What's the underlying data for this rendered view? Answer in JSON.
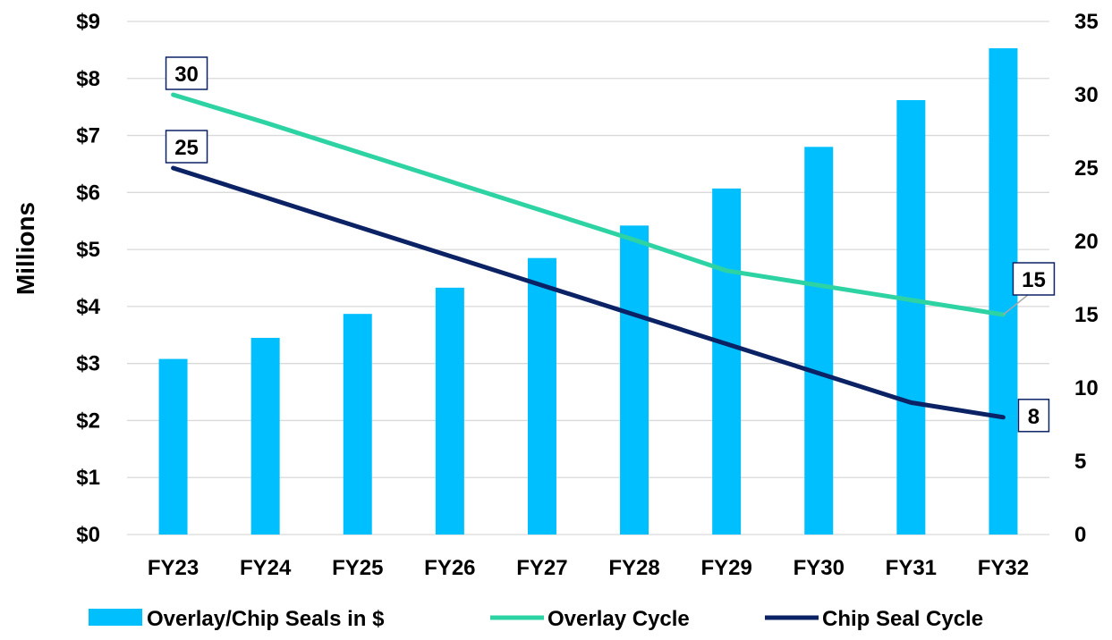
{
  "chart_data": {
    "type": "bar",
    "categories": [
      "FY23",
      "FY24",
      "FY25",
      "FY26",
      "FY27",
      "FY28",
      "FY29",
      "FY30",
      "FY31",
      "FY32"
    ],
    "bars": {
      "name": "Overlay/Chip Seals in $",
      "values": [
        3.08,
        3.45,
        3.87,
        4.33,
        4.85,
        5.42,
        6.07,
        6.8,
        7.62,
        8.53
      ],
      "color": "#00BFFF"
    },
    "lines": [
      {
        "name": "Overlay Cycle",
        "values": [
          30,
          28.1,
          26.1,
          24.1,
          22.1,
          20.1,
          18,
          17,
          16,
          15
        ],
        "color": "#2ED3A4",
        "labels": [
          {
            "index": 0,
            "text": "30"
          },
          {
            "index": 9,
            "text": "15"
          }
        ]
      },
      {
        "name": "Chip Seal Cycle",
        "values": [
          25,
          23,
          21,
          19,
          17,
          15,
          13,
          11,
          9,
          8
        ],
        "color": "#0B2265",
        "labels": [
          {
            "index": 0,
            "text": "25"
          },
          {
            "index": 9,
            "text": "8"
          }
        ]
      }
    ],
    "left_axis": {
      "label": "Millions",
      "ylim": [
        0,
        9
      ],
      "ticks": [
        "$0",
        "$1",
        "$2",
        "$3",
        "$4",
        "$5",
        "$6",
        "$7",
        "$8",
        "$9"
      ]
    },
    "right_axis": {
      "ylim": [
        0,
        35
      ],
      "ticks": [
        "0",
        "5",
        "10",
        "15",
        "20",
        "25",
        "30",
        "35"
      ]
    },
    "grid": true,
    "legend": "bottom"
  }
}
